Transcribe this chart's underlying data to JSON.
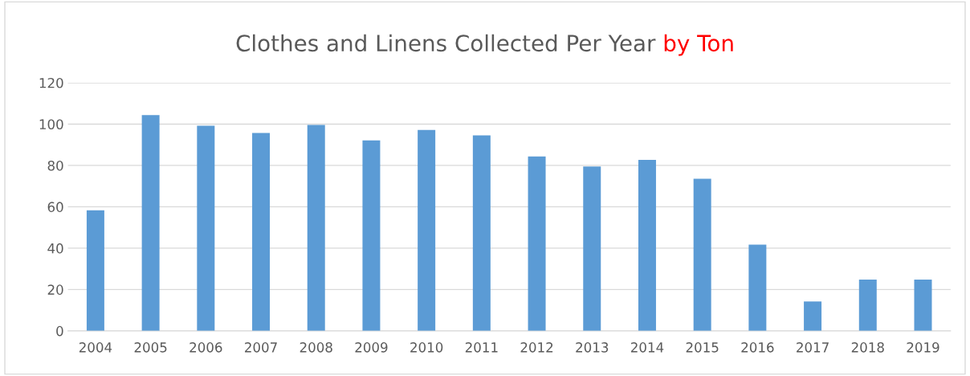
{
  "chart_data": {
    "type": "bar",
    "title": "Clothes and Linens Collected Per Year",
    "subtitle": "by Ton",
    "categories": [
      "2004",
      "2005",
      "2006",
      "2007",
      "2008",
      "2009",
      "2010",
      "2011",
      "2012",
      "2013",
      "2014",
      "2015",
      "2016",
      "2017",
      "2018",
      "2019"
    ],
    "values": [
      58.3,
      104.3,
      99.2,
      95.7,
      99.6,
      92.1,
      97.2,
      94.5,
      84.3,
      79.5,
      82.7,
      73.6,
      41.7,
      14.2,
      24.8,
      24.8
    ],
    "color": "#5b9bd5",
    "ylim": [
      0,
      120
    ],
    "yticks": [
      0,
      20,
      40,
      60,
      80,
      100,
      120
    ],
    "grid": "y"
  }
}
